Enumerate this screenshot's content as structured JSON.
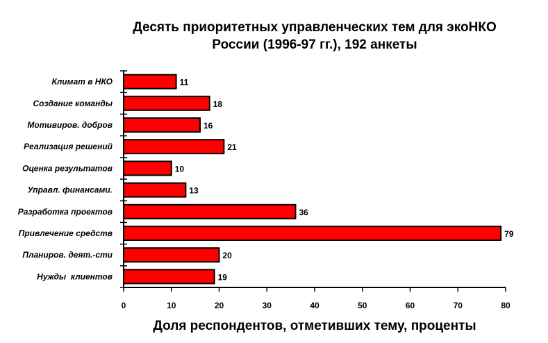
{
  "chart_data": {
    "type": "bar",
    "orientation": "horizontal",
    "title_line1": "Десять приоритетных управленческих тем для экоНКО",
    "title_line2": "России (1996-97 гг.), 192 анкеты",
    "xlabel": "Доля респондентов, отметивших тему, проценты",
    "ylabel": "",
    "categories": [
      "Климат в НКО",
      "Создание команды",
      "Мотивиров. добров",
      "Реализация решений",
      "Оценка результатов",
      "Управл. финансами.",
      "Разработка проектов",
      "Привлечение средств",
      "Планиров. деят.-сти",
      "Нужды  клиентов"
    ],
    "values": [
      11,
      18,
      16,
      21,
      10,
      13,
      36,
      79,
      20,
      19
    ],
    "xlim": [
      0,
      80
    ],
    "xticks": [
      "0",
      "10",
      "20",
      "30",
      "40",
      "50",
      "60",
      "70",
      "80"
    ],
    "bar_color": "#ff0000",
    "bar_edge_color": "#000000",
    "grid": false,
    "legend": "none"
  }
}
